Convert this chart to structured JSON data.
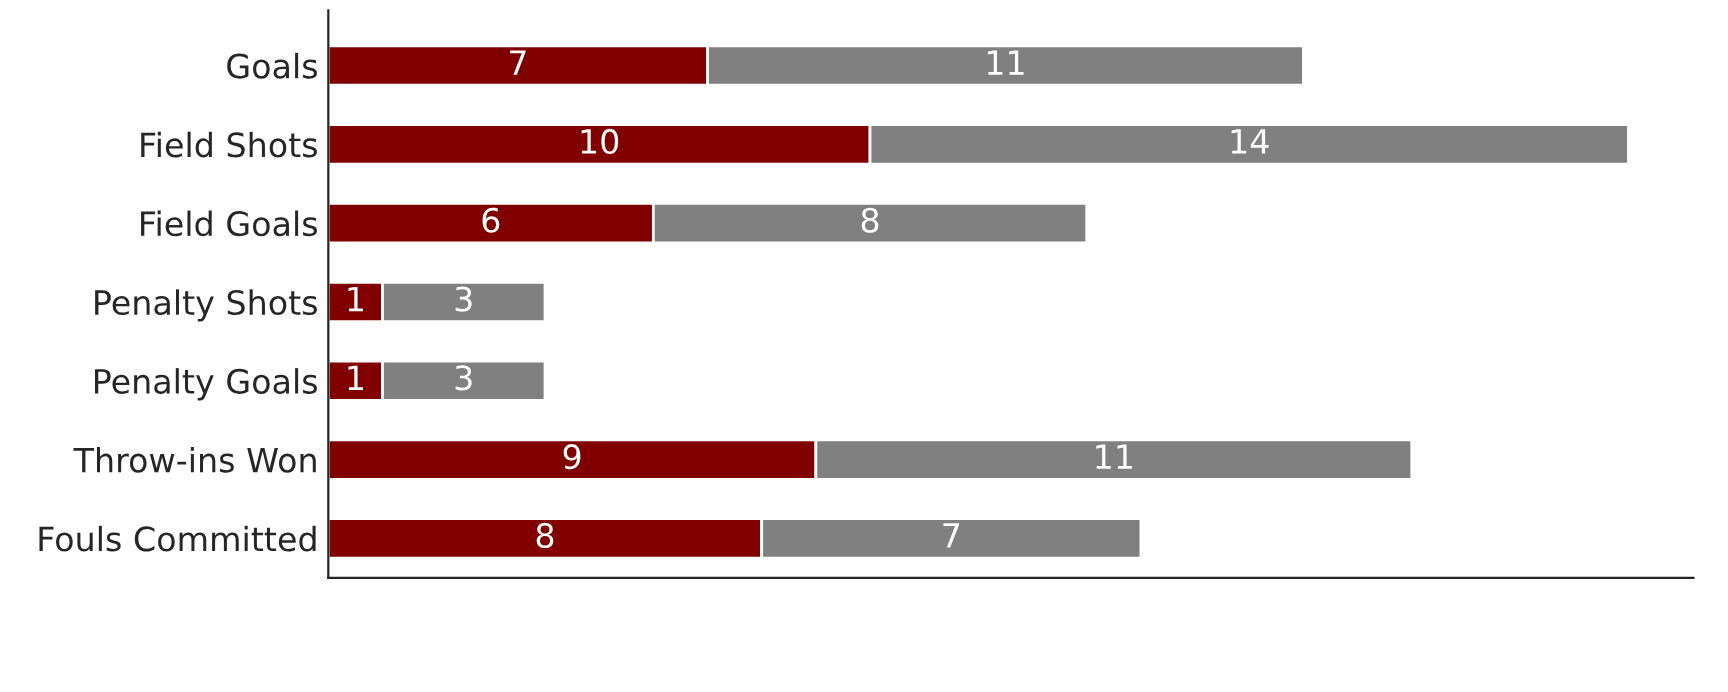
{
  "chart_data": {
    "type": "bar",
    "orientation": "horizontal",
    "stacked": true,
    "data_labels": true,
    "categories": [
      "Goals",
      "Field Shots",
      "Field Goals",
      "Penalty Shots",
      "Penalty Goals",
      "Throw-ins Won",
      "Fouls Committed"
    ],
    "series": [
      {
        "color": "#800000",
        "values": [
          7,
          10,
          6,
          1,
          1,
          9,
          8
        ]
      },
      {
        "color": "#808080",
        "values": [
          11,
          14,
          8,
          3,
          3,
          11,
          7
        ]
      }
    ]
  }
}
